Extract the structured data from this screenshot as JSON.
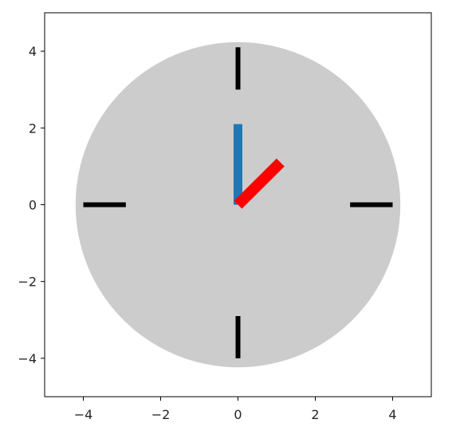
{
  "chart_data": {
    "type": "scatter",
    "title": "",
    "xlabel": "",
    "ylabel": "",
    "xlim": [
      -5,
      5
    ],
    "ylim": [
      -5,
      5
    ],
    "grid": false,
    "x_ticks": [
      -4,
      -2,
      0,
      2,
      4
    ],
    "y_ticks": [
      -4,
      -2,
      0,
      2,
      4
    ],
    "x_tick_labels": [
      "−4",
      "−2",
      "0",
      "2",
      "4"
    ],
    "y_tick_labels": [
      "−4",
      "−2",
      "0",
      "2",
      "4"
    ],
    "clock_face": {
      "center": [
        0,
        0
      ],
      "radius": 4.2,
      "color": "#cccccc"
    },
    "hour_marks": [
      {
        "from": [
          0,
          4.1
        ],
        "to": [
          0,
          3.0
        ]
      },
      {
        "from": [
          2.9,
          0
        ],
        "to": [
          4.0,
          0
        ]
      },
      {
        "from": [
          0,
          -2.9
        ],
        "to": [
          0,
          -4.0
        ]
      },
      {
        "from": [
          -4.0,
          0
        ],
        "to": [
          -2.9,
          0
        ]
      }
    ],
    "hour_mark_color": "#000000",
    "hands": [
      {
        "color": "#1f77b4",
        "from": [
          0,
          0
        ],
        "to": [
          0,
          2.1
        ]
      },
      {
        "color": "#ff0000",
        "from": [
          0,
          0
        ],
        "to": [
          1.1,
          1.1
        ]
      }
    ]
  }
}
